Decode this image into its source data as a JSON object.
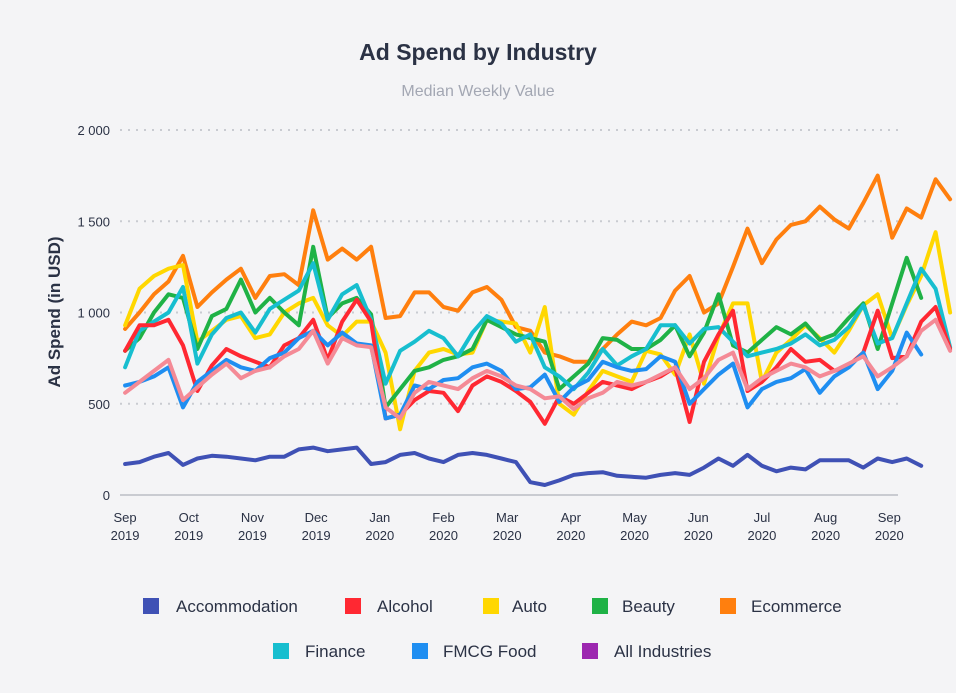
{
  "chart_data": {
    "type": "line",
    "title": "Ad Spend by Industry",
    "subtitle": "Median Weekly Value",
    "ylabel": "Ad Spend (in USD)",
    "xlabel": "",
    "ylim": [
      0,
      2000
    ],
    "yticks": [
      {
        "value": 0,
        "label": "0"
      },
      {
        "value": 500,
        "label": "500"
      },
      {
        "value": 1000,
        "label": "1 000"
      },
      {
        "value": 1500,
        "label": "1 500"
      },
      {
        "value": 2000,
        "label": "2 000"
      }
    ],
    "xticks": [
      {
        "index": 1,
        "month": "Sep",
        "year": "2019"
      },
      {
        "index": 5.4,
        "month": "Oct",
        "year": "2019"
      },
      {
        "index": 9.8,
        "month": "Nov",
        "year": "2019"
      },
      {
        "index": 14.2,
        "month": "Dec",
        "year": "2019"
      },
      {
        "index": 18.6,
        "month": "Jan",
        "year": "2020"
      },
      {
        "index": 23,
        "month": "Feb",
        "year": "2020"
      },
      {
        "index": 27.4,
        "month": "Mar",
        "year": "2020"
      },
      {
        "index": 31.8,
        "month": "Apr",
        "year": "2020"
      },
      {
        "index": 36.2,
        "month": "May",
        "year": "2020"
      },
      {
        "index": 40.6,
        "month": "Jun",
        "year": "2020"
      },
      {
        "index": 45,
        "month": "Jul",
        "year": "2020"
      },
      {
        "index": 49.4,
        "month": "Aug",
        "year": "2020"
      },
      {
        "index": 53.8,
        "month": "Sep",
        "year": "2020"
      }
    ],
    "x_range": [
      0.65,
      54.4
    ],
    "grid": true,
    "legend_position": "bottom",
    "series": [
      {
        "name": "All Industries",
        "color": "#9c27b0",
        "values": []
      },
      {
        "name": "Ecommerce",
        "color": "#ff7f0e",
        "values": [
          910,
          1000,
          1100,
          1170,
          1310,
          1030,
          1110,
          1180,
          1240,
          1080,
          1200,
          1210,
          1150,
          1560,
          1290,
          1350,
          1290,
          1360,
          970,
          980,
          1110,
          1110,
          1030,
          1010,
          1110,
          1140,
          1070,
          920,
          900,
          780,
          760,
          730,
          730,
          800,
          880,
          950,
          930,
          970,
          1120,
          1200,
          1000,
          1050,
          1250,
          1460,
          1270,
          1400,
          1480,
          1500,
          1580,
          1510,
          1460,
          1600,
          1750,
          1410,
          1570,
          1520,
          1730,
          1620
        ]
      },
      {
        "name": "Auto",
        "color": "#ffd700",
        "values": [
          930,
          1130,
          1200,
          1240,
          1260,
          840,
          900,
          960,
          980,
          860,
          880,
          1000,
          1050,
          1080,
          930,
          870,
          950,
          950,
          780,
          360,
          680,
          780,
          800,
          770,
          780,
          960,
          950,
          940,
          780,
          1030,
          500,
          440,
          570,
          680,
          650,
          620,
          790,
          770,
          660,
          880,
          610,
          870,
          1050,
          1050,
          620,
          780,
          850,
          930,
          860,
          780,
          900,
          1040,
          1100,
          860,
          1040,
          1200,
          1440,
          1000
        ]
      },
      {
        "name": "Beauty",
        "color": "#1fb246",
        "values": [
          790,
          860,
          1000,
          1100,
          1080,
          800,
          980,
          1020,
          1180,
          1000,
          1080,
          1000,
          930,
          1360,
          970,
          1050,
          1080,
          990,
          480,
          580,
          680,
          700,
          740,
          760,
          800,
          960,
          920,
          880,
          860,
          840,
          580,
          650,
          720,
          860,
          850,
          800,
          800,
          850,
          930,
          760,
          890,
          1100,
          820,
          780,
          850,
          920,
          880,
          940,
          850,
          880,
          970,
          1050,
          800,
          1050,
          1300,
          1080
        ]
      },
      {
        "name": "Finance",
        "color": "#17becf",
        "values": [
          700,
          900,
          950,
          1000,
          1140,
          720,
          880,
          970,
          1000,
          890,
          1020,
          1070,
          1120,
          1270,
          960,
          1100,
          1150,
          960,
          610,
          790,
          840,
          900,
          860,
          760,
          890,
          980,
          940,
          840,
          880,
          700,
          650,
          580,
          670,
          800,
          710,
          760,
          800,
          930,
          930,
          830,
          910,
          920,
          840,
          760,
          780,
          800,
          830,
          880,
          820,
          850,
          920,
          1040,
          830,
          860,
          1050,
          1240,
          1130,
          810
        ]
      },
      {
        "name": "Alcohol",
        "color": "#ff2832",
        "values": [
          790,
          930,
          930,
          960,
          820,
          570,
          710,
          800,
          760,
          730,
          700,
          820,
          860,
          960,
          740,
          950,
          1070,
          950,
          420,
          440,
          520,
          570,
          560,
          460,
          600,
          650,
          620,
          570,
          510,
          390,
          540,
          500,
          560,
          620,
          600,
          580,
          620,
          650,
          700,
          400,
          730,
          880,
          1010,
          570,
          620,
          700,
          800,
          730,
          740,
          680,
          710,
          780,
          1010,
          750,
          760,
          950,
          1030,
          800
        ]
      },
      {
        "name": "FMCG Food",
        "color": "#1f8ef1",
        "values": [
          600,
          620,
          650,
          700,
          480,
          620,
          680,
          740,
          700,
          680,
          750,
          780,
          860,
          900,
          820,
          890,
          830,
          820,
          420,
          440,
          600,
          580,
          630,
          640,
          700,
          720,
          680,
          580,
          590,
          660,
          510,
          590,
          630,
          730,
          700,
          680,
          690,
          760,
          730,
          500,
          580,
          660,
          720,
          480,
          580,
          620,
          640,
          690,
          560,
          650,
          700,
          780,
          580,
          680,
          890,
          770
        ]
      },
      {
        "name": "All Industries",
        "color": "#f48a96",
        "values": [
          560,
          620,
          680,
          740,
          520,
          590,
          660,
          720,
          640,
          680,
          700,
          760,
          800,
          900,
          720,
          860,
          820,
          810,
          480,
          420,
          560,
          620,
          600,
          580,
          640,
          680,
          650,
          600,
          580,
          530,
          540,
          470,
          530,
          560,
          620,
          600,
          620,
          660,
          700,
          580,
          640,
          740,
          780,
          580,
          640,
          680,
          720,
          700,
          650,
          680,
          720,
          760,
          650,
          700,
          760,
          900,
          960,
          790
        ]
      },
      {
        "name": "Accommodation",
        "color": "#3f51b5",
        "values": [
          170,
          180,
          210,
          230,
          165,
          200,
          215,
          210,
          200,
          190,
          210,
          210,
          250,
          260,
          240,
          250,
          260,
          170,
          180,
          220,
          230,
          200,
          180,
          220,
          230,
          220,
          200,
          180,
          70,
          55,
          80,
          110,
          120,
          125,
          105,
          100,
          95,
          110,
          120,
          110,
          150,
          200,
          160,
          220,
          160,
          130,
          150,
          140,
          190,
          190,
          190,
          150,
          200,
          180,
          200,
          160
        ]
      }
    ]
  },
  "legend": [
    {
      "name": "Accommodation",
      "color": "#3f51b5"
    },
    {
      "name": "Alcohol",
      "color": "#ff2832"
    },
    {
      "name": "Auto",
      "color": "#ffd700"
    },
    {
      "name": "Beauty",
      "color": "#1fb246"
    },
    {
      "name": "Ecommerce",
      "color": "#ff7f0e"
    },
    {
      "name": "Finance",
      "color": "#17becf"
    },
    {
      "name": "FMCG Food",
      "color": "#1f8ef1"
    },
    {
      "name": "All Industries",
      "color": "#9c27b0"
    }
  ]
}
